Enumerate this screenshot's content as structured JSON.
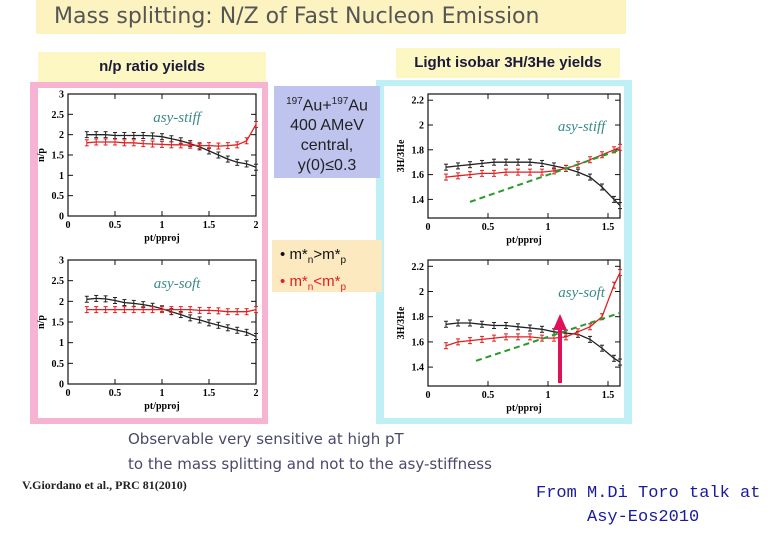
{
  "title": "Mass splitting: N/Z of Fast Nucleon Emission",
  "np_header": "n/p ratio yields",
  "iso_header": "Light isobar 3H/3He yields",
  "reaction": {
    "line1_a": "197",
    "line1_b": "Au+",
    "line1_c": "197",
    "line1_d": "Au",
    "line2": "400 AMeV",
    "line3": "central,",
    "line4": "y(0)≤0.3"
  },
  "mass_conditions": [
    {
      "bullet": "•",
      "a": "m*",
      "sub1": "n",
      "rel": ">m*",
      "sub2": "p",
      "color": "#111111"
    },
    {
      "bullet": "•",
      "a": "m*",
      "sub1": "n",
      "rel": "<m*",
      "sub2": "p",
      "color": "#e02020"
    }
  ],
  "observation_line1": "Observable very sensitive at high pT",
  "observation_line2": "to the mass splitting and not to the asy-stiffness",
  "reference": "V.Giordano et al., PRC 81(2010)",
  "credit_line1": "From M.Di Toro talk at",
  "credit_line2": "Asy-Eos2010",
  "colors": {
    "black_series": "#222222",
    "red_series": "#e02020",
    "green_line": "#2a9a2a",
    "arrow": "#e0105a"
  },
  "chart_data": [
    {
      "type": "line",
      "label": "asy-stiff",
      "xlabel": "pt/pproj",
      "ylabel": "n/p",
      "xlim": [
        0,
        2
      ],
      "ylim": [
        0,
        3
      ],
      "xticks": [
        "0",
        "0.5",
        "1",
        "1.5",
        "2"
      ],
      "yticks": [
        "0",
        "0.5",
        "1",
        "1.5",
        "2",
        "2.5",
        "3"
      ],
      "series": [
        {
          "name": "m*n>m*p",
          "x": [
            0.2,
            0.3,
            0.4,
            0.5,
            0.6,
            0.7,
            0.8,
            0.9,
            1.0,
            1.1,
            1.2,
            1.3,
            1.4,
            1.5,
            1.6,
            1.7,
            1.8,
            1.9,
            2.0
          ],
          "values": [
            2.0,
            2.0,
            2.0,
            1.98,
            1.98,
            1.98,
            1.98,
            1.97,
            1.95,
            1.9,
            1.85,
            1.78,
            1.7,
            1.6,
            1.5,
            1.4,
            1.32,
            1.28,
            1.2
          ]
        },
        {
          "name": "m*n<m*p",
          "x": [
            0.2,
            0.3,
            0.4,
            0.5,
            0.6,
            0.7,
            0.8,
            0.9,
            1.0,
            1.1,
            1.2,
            1.3,
            1.4,
            1.5,
            1.6,
            1.7,
            1.8,
            1.9,
            2.0
          ],
          "values": [
            1.8,
            1.82,
            1.82,
            1.82,
            1.8,
            1.8,
            1.78,
            1.77,
            1.76,
            1.75,
            1.75,
            1.74,
            1.73,
            1.73,
            1.72,
            1.73,
            1.75,
            1.85,
            2.25
          ]
        }
      ]
    },
    {
      "type": "line",
      "label": "asy-soft",
      "xlabel": "pt/pproj",
      "ylabel": "n/p",
      "xlim": [
        0,
        2
      ],
      "ylim": [
        0,
        3
      ],
      "xticks": [
        "0",
        "0.5",
        "1",
        "1.5",
        "2"
      ],
      "yticks": [
        "0",
        "0.5",
        "1",
        "1.5",
        "2",
        "2.5",
        "3"
      ],
      "series": [
        {
          "name": "m*n>m*p",
          "x": [
            0.2,
            0.3,
            0.4,
            0.5,
            0.6,
            0.7,
            0.8,
            0.9,
            1.0,
            1.1,
            1.2,
            1.3,
            1.4,
            1.5,
            1.6,
            1.7,
            1.8,
            1.9,
            2.0
          ],
          "values": [
            2.05,
            2.07,
            2.06,
            2.02,
            1.97,
            1.95,
            1.92,
            1.88,
            1.82,
            1.75,
            1.68,
            1.6,
            1.55,
            1.48,
            1.42,
            1.36,
            1.3,
            1.25,
            1.15
          ]
        },
        {
          "name": "m*n<m*p",
          "x": [
            0.2,
            0.3,
            0.4,
            0.5,
            0.6,
            0.7,
            0.8,
            0.9,
            1.0,
            1.1,
            1.2,
            1.3,
            1.4,
            1.5,
            1.6,
            1.7,
            1.8,
            1.9,
            2.0
          ],
          "values": [
            1.8,
            1.8,
            1.8,
            1.8,
            1.8,
            1.8,
            1.8,
            1.8,
            1.8,
            1.8,
            1.8,
            1.8,
            1.78,
            1.78,
            1.77,
            1.75,
            1.75,
            1.75,
            1.8
          ]
        }
      ]
    },
    {
      "type": "line",
      "label": "asy-stiff",
      "xlabel": "pt/pproj",
      "ylabel": "3H/3He",
      "xlim": [
        0,
        1.6
      ],
      "ylim": [
        1.25,
        2.25
      ],
      "xticks": [
        "0",
        "0.5",
        "1",
        "1.5"
      ],
      "yticks": [
        "1.4",
        "1.6",
        "1.8",
        "2",
        "2.2"
      ],
      "series": [
        {
          "name": "m*n>m*p",
          "x": [
            0.15,
            0.25,
            0.35,
            0.45,
            0.55,
            0.65,
            0.75,
            0.85,
            0.95,
            1.05,
            1.15,
            1.25,
            1.35,
            1.45,
            1.55,
            1.6
          ],
          "values": [
            1.66,
            1.67,
            1.68,
            1.69,
            1.7,
            1.7,
            1.7,
            1.7,
            1.69,
            1.67,
            1.65,
            1.62,
            1.58,
            1.5,
            1.4,
            1.35
          ]
        },
        {
          "name": "m*n<m*p",
          "x": [
            0.15,
            0.25,
            0.35,
            0.45,
            0.55,
            0.65,
            0.75,
            0.85,
            0.95,
            1.05,
            1.15,
            1.25,
            1.35,
            1.45,
            1.55,
            1.6
          ],
          "values": [
            1.58,
            1.59,
            1.6,
            1.61,
            1.61,
            1.62,
            1.62,
            1.62,
            1.62,
            1.63,
            1.65,
            1.68,
            1.72,
            1.76,
            1.8,
            1.82
          ]
        },
        {
          "name": "linear-guide",
          "style": "dashed",
          "x": [
            0.35,
            1.6
          ],
          "values": [
            1.38,
            1.8
          ]
        }
      ]
    },
    {
      "type": "line",
      "label": "asy-soft",
      "xlabel": "pt/pproj",
      "ylabel": "3H/3He",
      "xlim": [
        0,
        1.6
      ],
      "ylim": [
        1.25,
        2.25
      ],
      "xticks": [
        "0",
        "0.5",
        "1",
        "1.5"
      ],
      "yticks": [
        "1.4",
        "1.6",
        "1.8",
        "2",
        "2.2"
      ],
      "arrow_at_x": 1.1,
      "series": [
        {
          "name": "m*n>m*p",
          "x": [
            0.15,
            0.25,
            0.35,
            0.45,
            0.55,
            0.65,
            0.75,
            0.85,
            0.95,
            1.05,
            1.15,
            1.25,
            1.35,
            1.45,
            1.55,
            1.6
          ],
          "values": [
            1.74,
            1.75,
            1.75,
            1.74,
            1.73,
            1.73,
            1.72,
            1.71,
            1.7,
            1.68,
            1.67,
            1.66,
            1.62,
            1.55,
            1.47,
            1.44
          ]
        },
        {
          "name": "m*n<m*p",
          "x": [
            0.15,
            0.25,
            0.35,
            0.45,
            0.55,
            0.65,
            0.75,
            0.85,
            0.95,
            1.05,
            1.15,
            1.25,
            1.35,
            1.45,
            1.55,
            1.6
          ],
          "values": [
            1.57,
            1.6,
            1.61,
            1.62,
            1.63,
            1.64,
            1.64,
            1.64,
            1.63,
            1.63,
            1.64,
            1.68,
            1.72,
            1.8,
            2.05,
            2.15
          ]
        },
        {
          "name": "linear-guide",
          "style": "dashed",
          "x": [
            0.4,
            1.6
          ],
          "values": [
            1.45,
            1.83
          ]
        }
      ]
    }
  ]
}
